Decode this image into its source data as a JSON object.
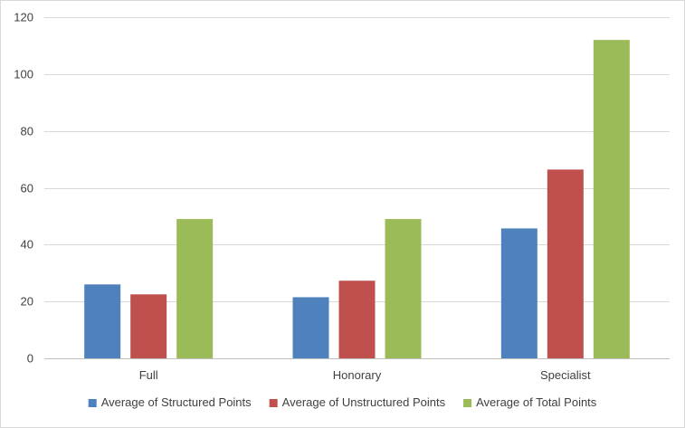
{
  "chart_data": {
    "type": "bar",
    "title": "",
    "xlabel": "",
    "ylabel": "",
    "categories": [
      "Full",
      "Honorary",
      "Specialist"
    ],
    "series": [
      {
        "name": "Average of Structured Points",
        "color": "#4f81bd",
        "values": [
          26,
          21.5,
          45.7
        ]
      },
      {
        "name": "Average of Unstructured Points",
        "color": "#c0504d",
        "values": [
          22.5,
          27.3,
          66.4
        ]
      },
      {
        "name": "Average of Total Points",
        "color": "#9bbb59",
        "values": [
          49,
          49,
          112
        ]
      }
    ],
    "ylim": [
      0,
      120
    ],
    "yticks": [
      0,
      20,
      40,
      60,
      80,
      100,
      120
    ],
    "grid": true,
    "legend": "bottom"
  }
}
